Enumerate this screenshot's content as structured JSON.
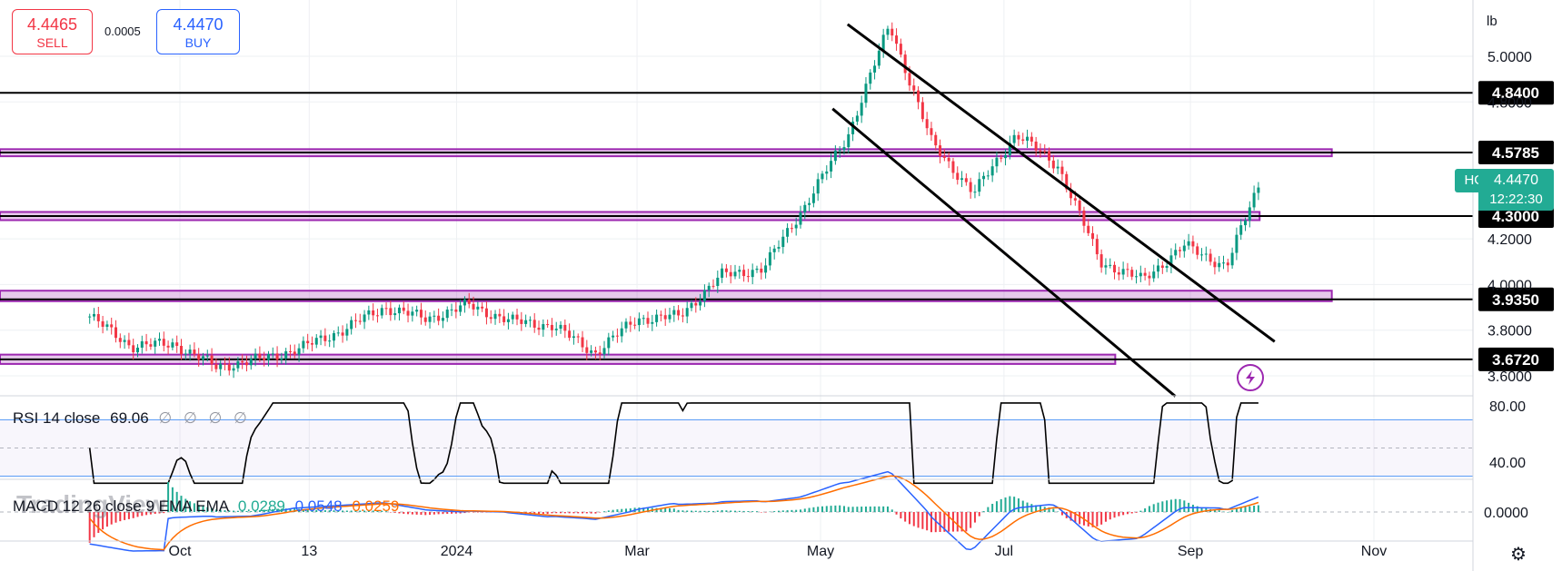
{
  "trade": {
    "sell_price": "4.4465",
    "sell_label": "SELL",
    "spread": "0.0005",
    "buy_price": "4.4470",
    "buy_label": "BUY"
  },
  "price_axis": {
    "unit_label": "lb",
    "tick_labels": [
      "5.0000",
      "4.8000",
      "4.2000",
      "4.0000",
      "3.8000",
      "3.6000"
    ],
    "tick_values": [
      5.0,
      4.8,
      4.2,
      4.0,
      3.8,
      3.6
    ]
  },
  "symbol": {
    "name": "HGZ2024",
    "last_price": "4.4470",
    "countdown": "12:22:30",
    "badge_color": "#22ab94"
  },
  "levels": [
    {
      "label": "4.8400",
      "value": 4.84
    },
    {
      "label": "4.5785",
      "value": 4.5785
    },
    {
      "label": "4.3000",
      "value": 4.3
    },
    {
      "label": "3.9350",
      "value": 3.935
    },
    {
      "label": "3.6720",
      "value": 3.672
    }
  ],
  "zones": [
    {
      "low": 4.57,
      "high": 4.585,
      "end_date": "2024-10-18"
    },
    {
      "low": 4.29,
      "high": 4.31,
      "end_date": "2024-09-24"
    },
    {
      "low": 3.935,
      "high": 3.965,
      "end_date": "2024-10-18"
    },
    {
      "low": 3.66,
      "high": 3.685,
      "end_date": "2024-08-07"
    }
  ],
  "time_axis": {
    "labels": [
      "Oct",
      "13",
      "2024",
      "Mar",
      "May",
      "Jul",
      "Sep",
      "Nov"
    ],
    "dates": [
      "2023-10-01",
      "2023-11-13",
      "2024-01-01",
      "2024-03-01",
      "2024-05-01",
      "2024-07-01",
      "2024-09-01",
      "2024-11-01"
    ]
  },
  "channel_lines": [
    {
      "start": [
        "2024-05-10",
        5.14
      ],
      "end": [
        "2024-09-29",
        3.75
      ]
    },
    {
      "start": [
        "2024-05-05",
        4.77
      ],
      "end": [
        "2024-08-27",
        3.51
      ]
    }
  ],
  "rsi": {
    "title": "RSI 14 close",
    "value": "69.06",
    "ghost_values": "∅ ∅ ∅ ∅",
    "tick_labels": [
      "80.00",
      "40.00"
    ],
    "tick_values": [
      80,
      40
    ]
  },
  "macd": {
    "title": "MACD 12 26 close 9 EMA EMA",
    "values": [
      "0.0289",
      "0.0548",
      "0.0259"
    ],
    "value_colors": [
      "#22ab94",
      "#2962ff",
      "#ff6d00"
    ],
    "tick_labels": [
      "0.0000"
    ]
  },
  "watermark": "TradingView",
  "icons": [
    "flash-icon",
    "settings-icon"
  ],
  "colors": {
    "up": "#089981",
    "down": "#f23645",
    "zone": "#9c27b0"
  },
  "chart_data": {
    "type": "line",
    "title": "",
    "xlabel": "",
    "ylabel": "",
    "ylim": [
      3.55,
      5.15
    ],
    "series": [
      {
        "x": [
          "2023-09-01",
          "2023-09-15",
          "2023-09-29",
          "2023-10-13",
          "2023-10-27",
          "2023-11-10",
          "2023-11-24",
          "2023-12-08",
          "2023-12-22",
          "2024-01-05",
          "2024-01-19",
          "2024-02-02",
          "2024-02-16",
          "2024-03-01",
          "2024-03-15",
          "2024-03-29",
          "2024-04-12",
          "2024-04-26",
          "2024-05-10",
          "2024-05-24",
          "2024-06-07",
          "2024-06-21",
          "2024-07-05",
          "2024-07-19",
          "2024-08-02",
          "2024-08-16",
          "2024-08-30",
          "2024-09-13",
          "2024-09-24"
        ],
        "values": [
          3.86,
          3.73,
          3.74,
          3.64,
          3.67,
          3.72,
          3.8,
          3.9,
          3.85,
          3.91,
          3.84,
          3.82,
          3.7,
          3.85,
          3.86,
          4.04,
          4.07,
          4.35,
          4.65,
          5.14,
          4.62,
          4.4,
          4.66,
          4.52,
          4.1,
          4.02,
          4.17,
          4.08,
          4.447
        ]
      }
    ]
  }
}
